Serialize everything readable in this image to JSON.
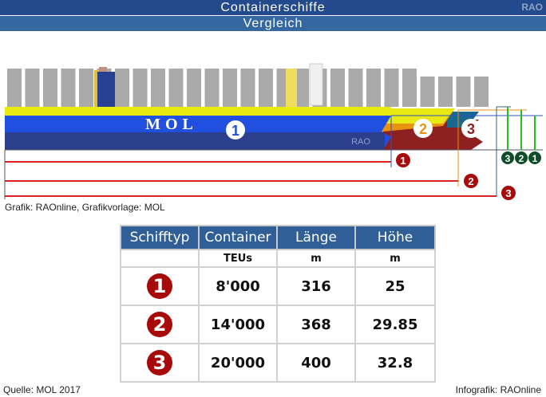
{
  "header": {
    "title": "Containerschiffe",
    "subtitle": "Vergleich",
    "logo": "RAO"
  },
  "graphic": {
    "hull_text": "MOL",
    "hull_logo": "RAO",
    "ship_labels": [
      "1",
      "2",
      "3"
    ],
    "height_labels": [
      "3",
      "2",
      "1"
    ],
    "length_labels": [
      "1",
      "2",
      "3"
    ],
    "colors": {
      "ship1": "#2150e0",
      "ship2": "#e8920f",
      "ship3": "#8e2020",
      "marker": "#a80a0a",
      "height_marker": "#0d4d2a"
    }
  },
  "credit_graphic": "Grafik: RAOnline, Grafikvorlage: MOL",
  "table": {
    "headers": [
      "Schifftyp",
      "Container",
      "Länge",
      "Höhe"
    ],
    "units": [
      "",
      "TEUs",
      "m",
      "m"
    ],
    "rows": [
      {
        "type": "1",
        "container": "8'000",
        "length": "316",
        "height": "25"
      },
      {
        "type": "2",
        "container": "14'000",
        "length": "368",
        "height": "29.85"
      },
      {
        "type": "3",
        "container": "20'000",
        "length": "400",
        "height": "32.8"
      }
    ]
  },
  "footer": {
    "source": "Quelle: MOL 2017",
    "infographic": "Infografik: RAOnline"
  }
}
